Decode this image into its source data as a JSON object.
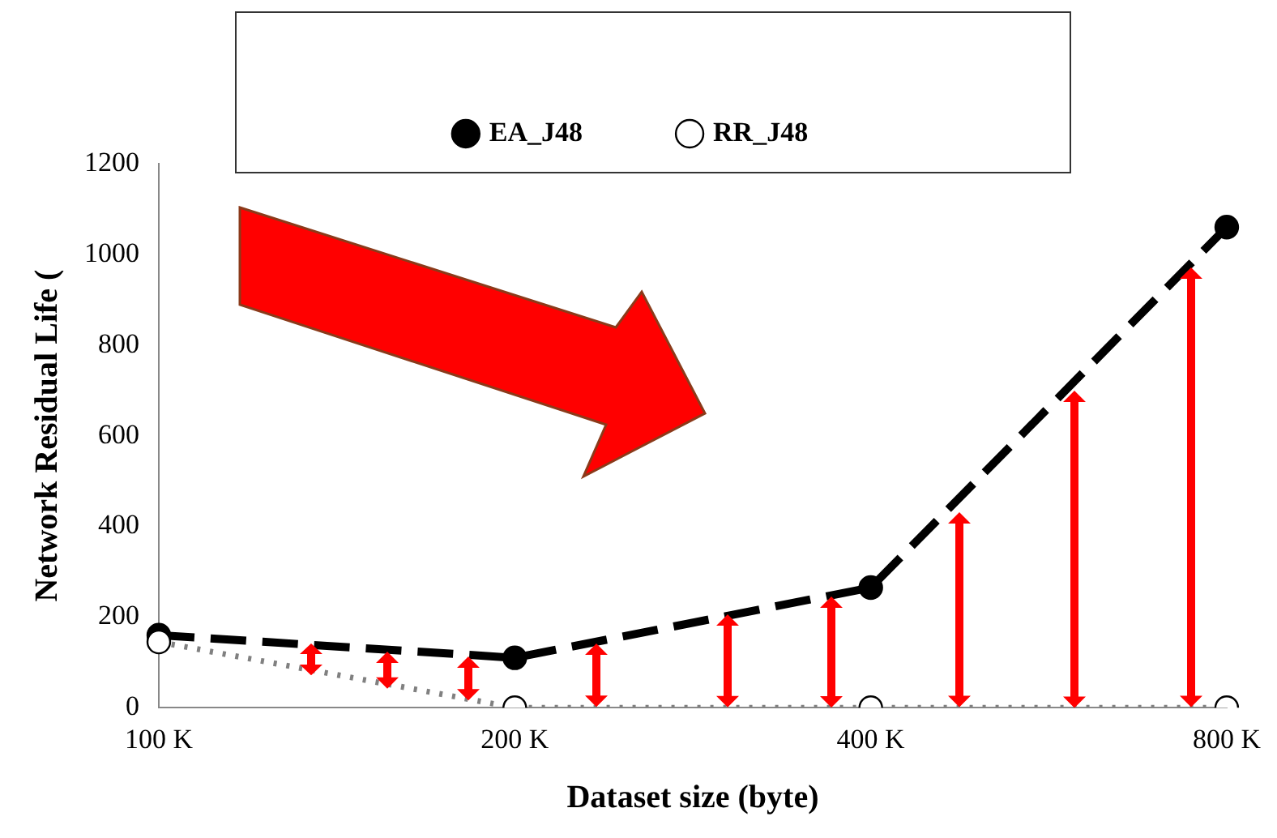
{
  "chart_data": {
    "type": "line",
    "xlabel": "Dataset size (byte)",
    "ylabel": "Network Residual Life (",
    "categories": [
      "100 K",
      "200 K",
      "400 K",
      "800 K"
    ],
    "series": [
      {
        "name": "EA_J48",
        "color": "#000000",
        "values": [
          160,
          110,
          265,
          1060
        ],
        "line_style": "dashed",
        "marker": "circle"
      },
      {
        "name": "RR_J48",
        "color": "#808080",
        "values": [
          145,
          0,
          0,
          0
        ],
        "line_style": "dotted",
        "marker": "circle"
      }
    ],
    "ylim": [
      0,
      1200
    ],
    "yticks": [
      0,
      200,
      400,
      600,
      800,
      1000,
      1200
    ],
    "grid": false,
    "legend": "top"
  }
}
